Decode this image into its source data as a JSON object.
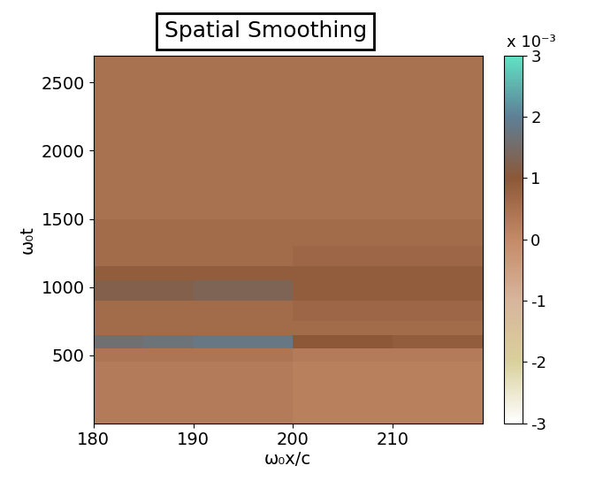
{
  "chart_data": {
    "type": "heatmap",
    "title": "Spatial Smoothing",
    "x_label": "ω₀x/c",
    "y_label": "ω₀t",
    "x_edges": [
      180,
      185,
      190,
      195,
      200,
      205,
      210,
      215,
      219
    ],
    "y_edges": [
      0,
      150,
      300,
      450,
      550,
      650,
      750,
      900,
      1050,
      1150,
      1300,
      1500,
      1800,
      2100,
      2400,
      2700
    ],
    "cells": [
      [
        0.0003,
        0.0003,
        0.0003,
        0.0003,
        0.0002,
        0.0002,
        0.0002,
        0.0002
      ],
      [
        0.0003,
        0.0003,
        0.0003,
        0.0003,
        0.0002,
        0.0002,
        0.0002,
        0.0002
      ],
      [
        0.0003,
        0.0003,
        0.0003,
        0.0003,
        0.0002,
        0.0002,
        0.0002,
        0.0002
      ],
      [
        0.0004,
        0.0004,
        0.0004,
        0.0004,
        0.0003,
        0.0003,
        0.0003,
        0.0003
      ],
      [
        0.0016,
        0.0017,
        0.0018,
        0.0018,
        0.001,
        0.001,
        0.0009,
        0.0009
      ],
      [
        0.0006,
        0.0006,
        0.0006,
        0.0006,
        0.0006,
        0.0006,
        0.0006,
        0.0006
      ],
      [
        0.0006,
        0.0006,
        0.0006,
        0.0006,
        0.0007,
        0.0007,
        0.0007,
        0.0007
      ],
      [
        0.0012,
        0.0012,
        0.0013,
        0.0013,
        0.0009,
        0.0009,
        0.0009,
        0.0009
      ],
      [
        0.0009,
        0.0009,
        0.0009,
        0.0009,
        0.0009,
        0.0009,
        0.0009,
        0.0009
      ],
      [
        0.0006,
        0.0006,
        0.0006,
        0.0006,
        0.0007,
        0.0007,
        0.0007,
        0.0007
      ],
      [
        0.0006,
        0.0006,
        0.0006,
        0.0006,
        0.0006,
        0.0006,
        0.0006,
        0.0006
      ],
      [
        0.0005,
        0.0005,
        0.0005,
        0.0005,
        0.0005,
        0.0005,
        0.0005,
        0.0005
      ],
      [
        0.0005,
        0.0005,
        0.0005,
        0.0005,
        0.0005,
        0.0005,
        0.0005,
        0.0005
      ],
      [
        0.0005,
        0.0005,
        0.0005,
        0.0005,
        0.0005,
        0.0005,
        0.0005,
        0.0005
      ],
      [
        0.0005,
        0.0005,
        0.0005,
        0.0005,
        0.0005,
        0.0005,
        0.0005,
        0.0005
      ]
    ],
    "xlim": [
      180,
      219
    ],
    "ylim": [
      0,
      2700
    ],
    "xticks": [
      180,
      190,
      200,
      210
    ],
    "yticks": [
      500,
      1000,
      1500,
      2000,
      2500
    ],
    "colorbar_range": [
      -0.003,
      0.003
    ],
    "colorbar_ticks": [
      {
        "value": -0.003,
        "label": "-3"
      },
      {
        "value": -0.002,
        "label": "-2"
      },
      {
        "value": -0.001,
        "label": "-1"
      },
      {
        "value": 0,
        "label": "0"
      },
      {
        "value": 0.001,
        "label": "1"
      },
      {
        "value": 0.002,
        "label": "2"
      },
      {
        "value": 0.003,
        "label": "3"
      }
    ],
    "colorbar_multiplier": "x 10⁻³"
  }
}
